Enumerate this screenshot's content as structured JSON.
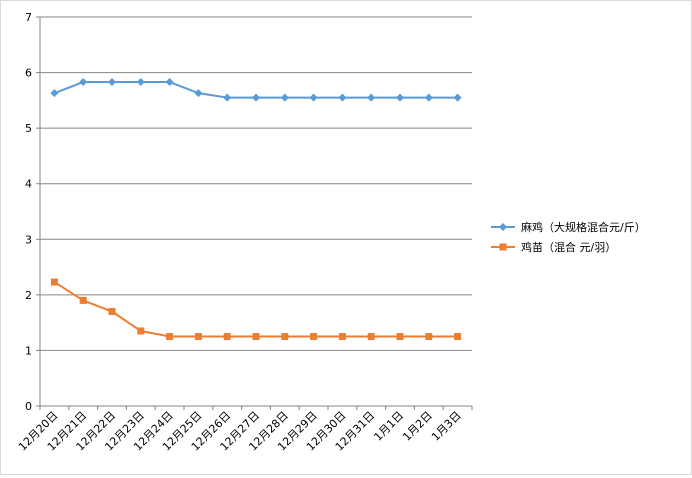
{
  "chart_data": {
    "type": "line",
    "title": "",
    "xlabel": "",
    "ylabel": "",
    "categories": [
      "12月20日",
      "12月21日",
      "12月22日",
      "12月23日",
      "12月24日",
      "12月25日",
      "12月26日",
      "12月27日",
      "12月28日",
      "12月29日",
      "12月30日",
      "12月31日",
      "1月1日",
      "1月2日",
      "1月3日"
    ],
    "ylim": [
      0,
      7
    ],
    "yticks": [
      "0",
      "1",
      "2",
      "3",
      "4",
      "5",
      "6",
      "7"
    ],
    "grid": true,
    "legend_position": "right",
    "series": [
      {
        "name": "麻鸡（大规格混合元/斤）",
        "color": "#5b9bd5",
        "marker": "diamond",
        "values": [
          5.63,
          5.83,
          5.83,
          5.83,
          5.83,
          5.63,
          5.55,
          5.55,
          5.55,
          5.55,
          5.55,
          5.55,
          5.55,
          5.55,
          5.55
        ]
      },
      {
        "name": "鸡苗（混合 元/羽）",
        "color": "#ed7d31",
        "marker": "square",
        "values": [
          2.23,
          1.9,
          1.7,
          1.35,
          1.25,
          1.25,
          1.25,
          1.25,
          1.25,
          1.25,
          1.25,
          1.25,
          1.25,
          1.25,
          1.25
        ]
      }
    ]
  }
}
